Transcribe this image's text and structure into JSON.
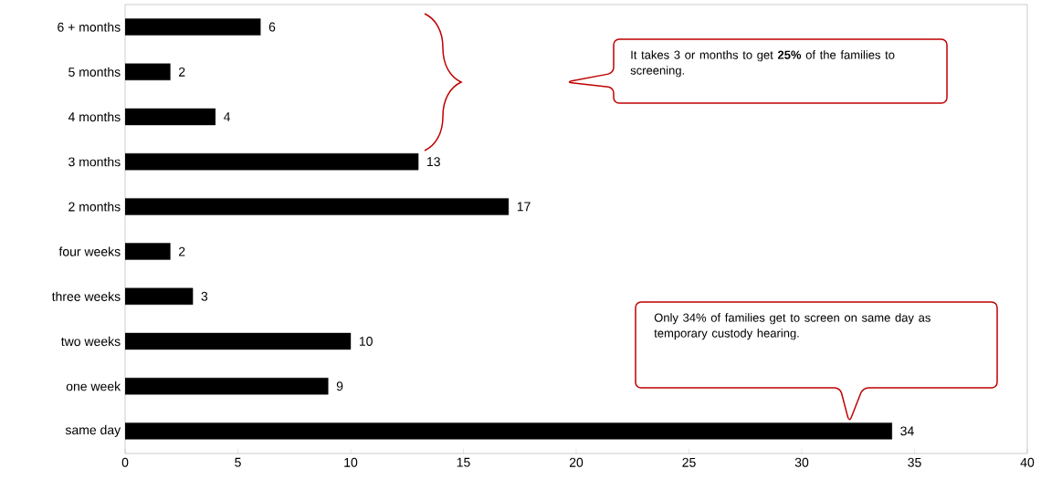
{
  "chart_data": {
    "type": "bar",
    "orientation": "horizontal",
    "categories": [
      "6 + months",
      "5 months",
      "4 months",
      "3 months",
      "2 months",
      "four weeks",
      "three weeks",
      "two weeks",
      "one week",
      "same day"
    ],
    "values": [
      6,
      2,
      4,
      13,
      17,
      2,
      3,
      10,
      9,
      34
    ],
    "color": "#000000",
    "xlim": [
      0,
      40
    ],
    "xticks": [
      0,
      5,
      10,
      15,
      20,
      25,
      30,
      35,
      40
    ],
    "data_labels": true,
    "grid": false,
    "annotations": [
      "It takes 3 or months to get **25%** of the families to screening.",
      "Only 34% of families get to screen on same day as temporary custody hearing."
    ]
  }
}
